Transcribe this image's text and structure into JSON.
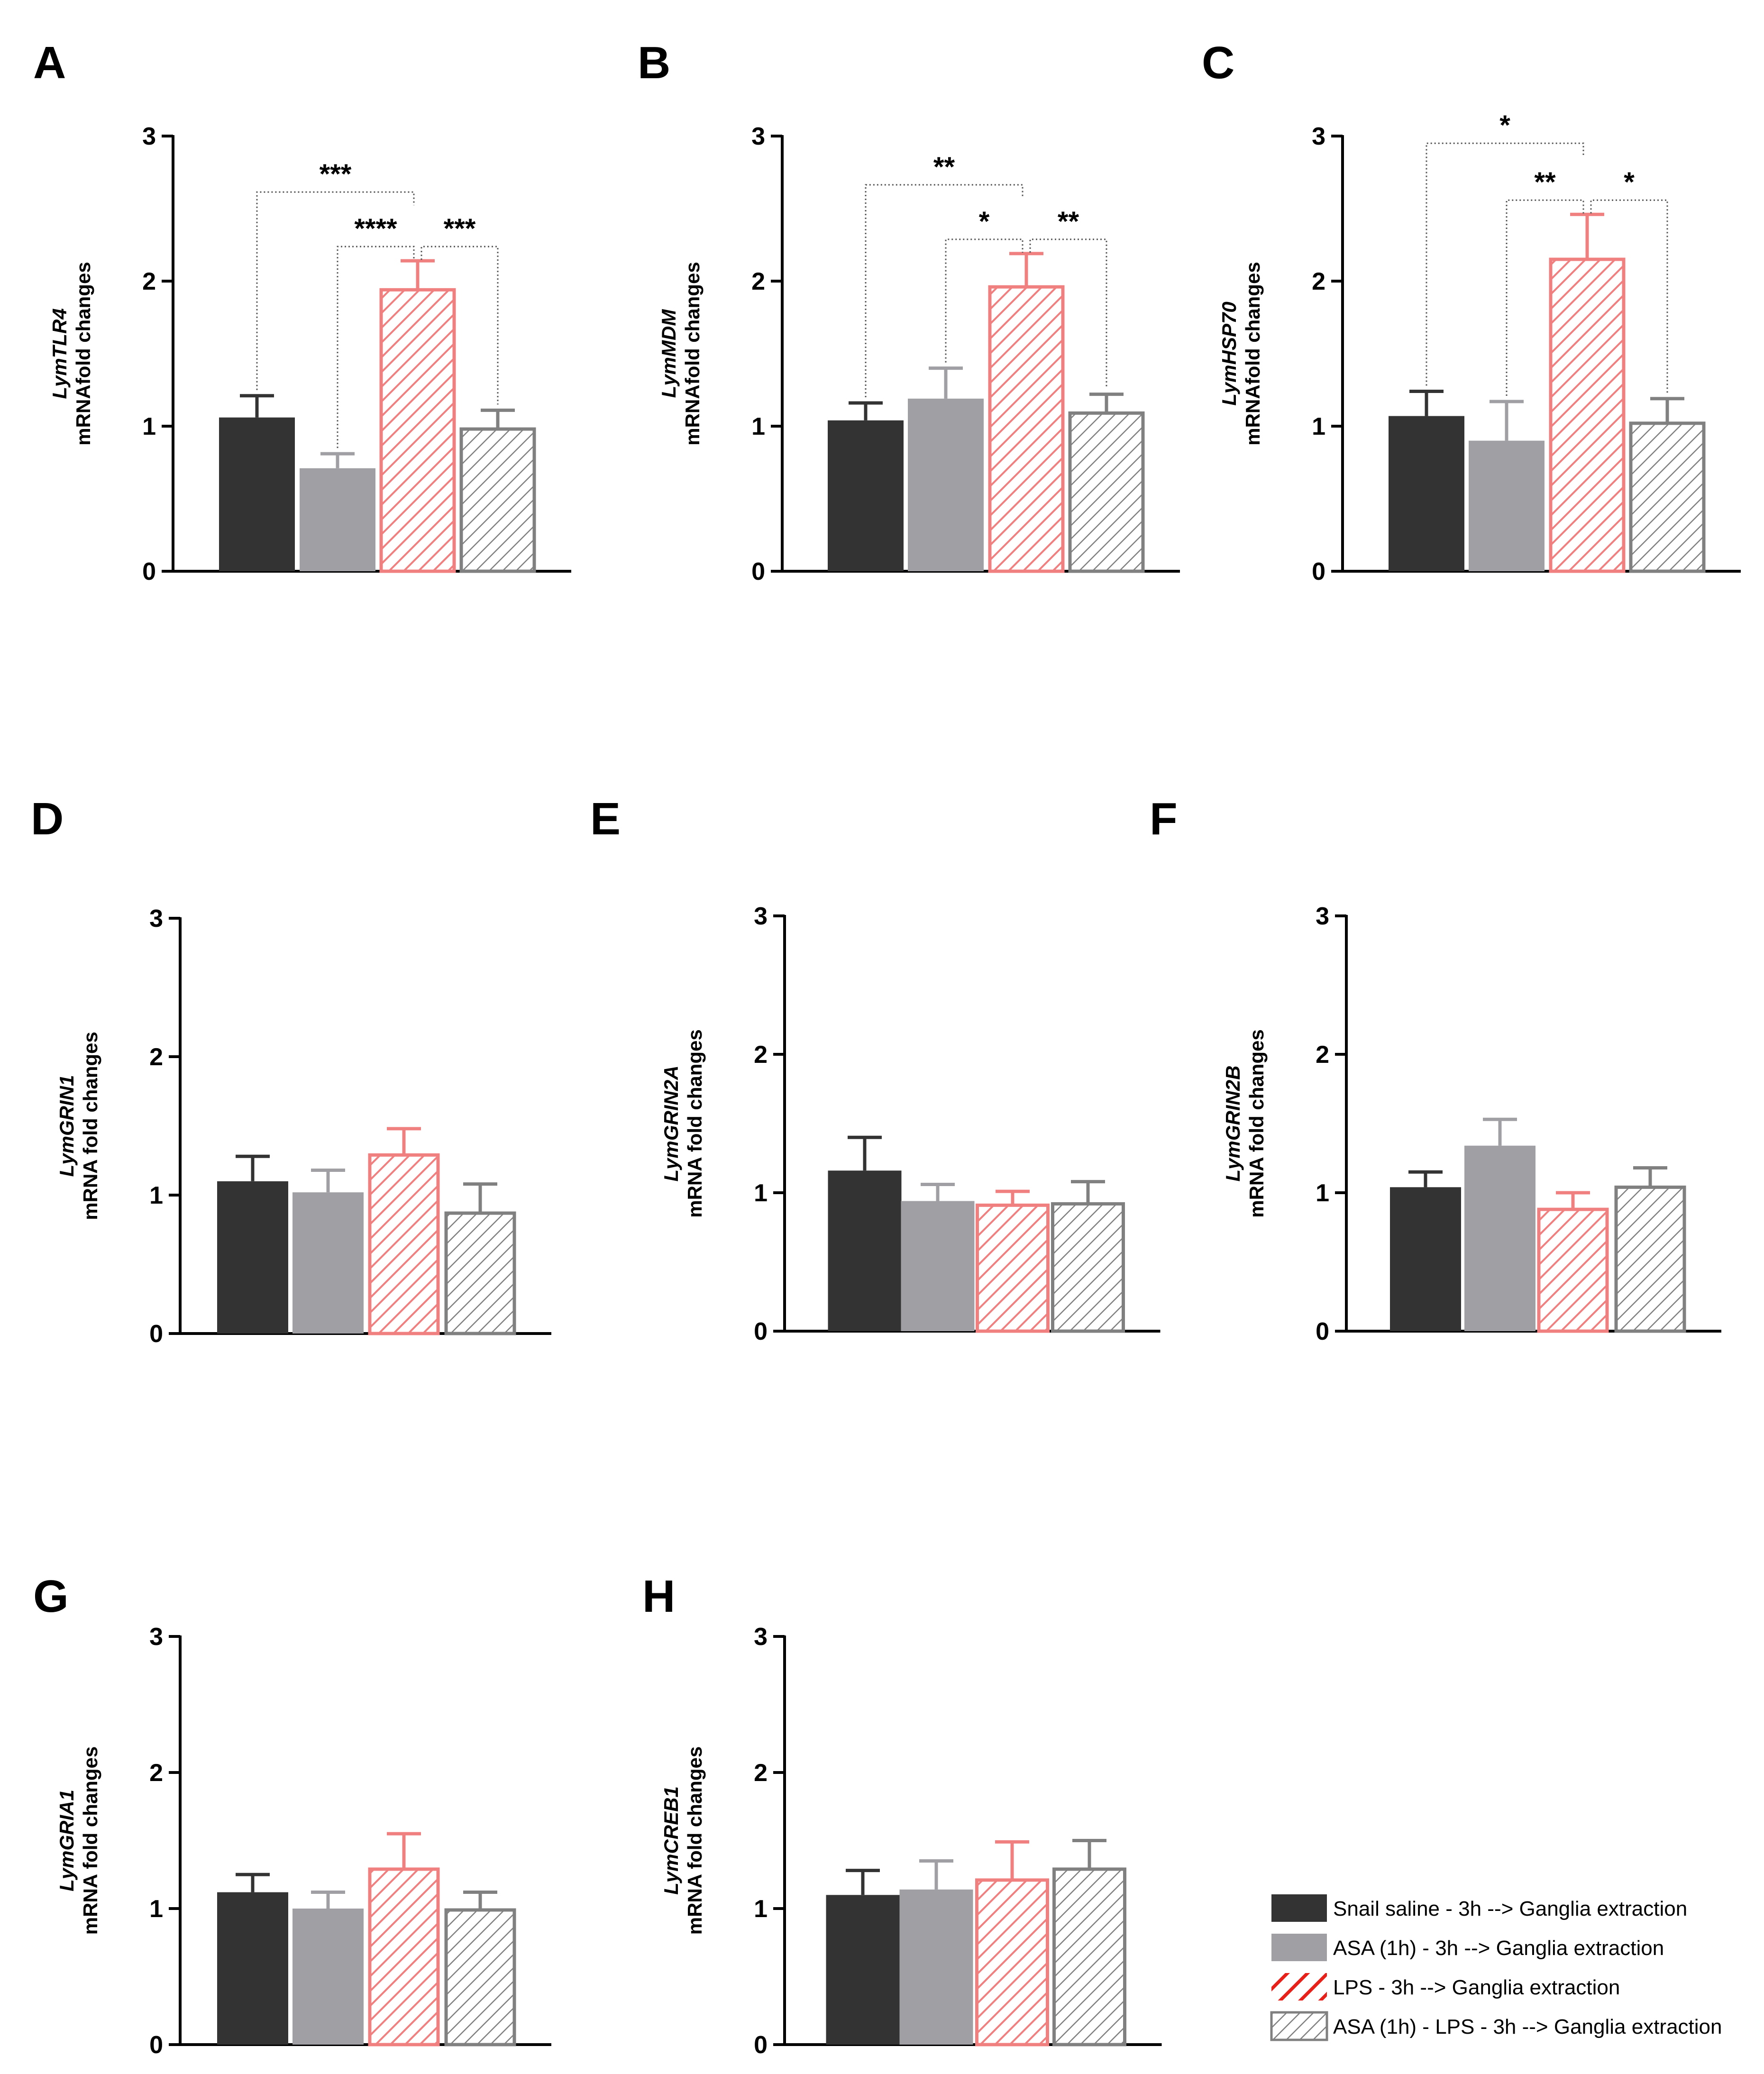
{
  "legend": {
    "items": [
      {
        "label": "Snail saline - 3h --> Ganglia extraction",
        "style": "dark"
      },
      {
        "label": "ASA (1h) - 3h --> Ganglia extraction",
        "style": "gray"
      },
      {
        "label": "LPS - 3h --> Ganglia extraction",
        "style": "redhatch"
      },
      {
        "label": "ASA (1h) - LPS - 3h --> Ganglia extraction",
        "style": "grayhatch"
      }
    ]
  },
  "styles": {
    "dark": {
      "fill": "#333333",
      "stroke": "#333333"
    },
    "gray": {
      "fill": "#a0a0a4",
      "stroke": "#a0a0a4"
    },
    "redhatch": {
      "fill": "#ffffff",
      "stroke": "#f08080",
      "hatch": "#f08080"
    },
    "grayhatch": {
      "fill": "#ffffff",
      "stroke": "#808080",
      "hatch": "#808080"
    }
  },
  "chart_data": [
    {
      "panel": "A",
      "type": "bar",
      "gene": "LymTLR4",
      "ylabel": "mRNAfold changes",
      "ylim": [
        0,
        3
      ],
      "yticks": [
        "0",
        "1",
        "2",
        "3"
      ],
      "groups": [
        "Snail saline - 3h --> Ganglia extraction",
        "ASA (1h) - 3h --> Ganglia extraction",
        "LPS - 3h --> Ganglia extraction",
        "ASA (1h) - LPS - 3h --> Ganglia extraction"
      ],
      "values": [
        1.06,
        0.71,
        1.95,
        0.99
      ],
      "errors": [
        0.15,
        0.1,
        0.19,
        0.12
      ],
      "significance": [
        {
          "from": 1,
          "to": 3,
          "label": "***"
        },
        {
          "from": 2,
          "to": 3,
          "label": "****"
        },
        {
          "from": 3,
          "to": 4,
          "label": "***"
        }
      ]
    },
    {
      "panel": "B",
      "type": "bar",
      "gene": "LymMDM",
      "ylabel": "mRNAfold changes",
      "ylim": [
        0,
        3
      ],
      "yticks": [
        "0",
        "1",
        "2",
        "3"
      ],
      "groups": [
        "Snail saline - 3h --> Ganglia extraction",
        "ASA (1h) - 3h --> Ganglia extraction",
        "LPS - 3h --> Ganglia extraction",
        "ASA (1h) - LPS - 3h --> Ganglia extraction"
      ],
      "values": [
        1.04,
        1.19,
        1.97,
        1.1
      ],
      "errors": [
        0.12,
        0.21,
        0.22,
        0.12
      ],
      "significance": [
        {
          "from": 1,
          "to": 3,
          "label": "**"
        },
        {
          "from": 2,
          "to": 3,
          "label": "*"
        },
        {
          "from": 3,
          "to": 4,
          "label": "**"
        }
      ]
    },
    {
      "panel": "C",
      "type": "bar",
      "gene": "LymHSP70",
      "ylabel": "mRNAfold changes",
      "ylim": [
        0,
        3
      ],
      "yticks": [
        "0",
        "1",
        "2",
        "3"
      ],
      "groups": [
        "Snail saline - 3h --> Ganglia extraction",
        "ASA (1h) - 3h --> Ganglia extraction",
        "LPS - 3h --> Ganglia extraction",
        "ASA (1h) - LPS - 3h --> Ganglia extraction"
      ],
      "values": [
        1.07,
        0.9,
        2.16,
        1.03
      ],
      "errors": [
        0.17,
        0.27,
        0.3,
        0.16
      ],
      "significance": [
        {
          "from": 1,
          "to": 3,
          "label": "*"
        },
        {
          "from": 2,
          "to": 3,
          "label": "**"
        },
        {
          "from": 3,
          "to": 4,
          "label": "*"
        }
      ]
    },
    {
      "panel": "D",
      "type": "bar",
      "gene": "LymGRIN1",
      "ylabel": "mRNA fold changes",
      "ylim": [
        0,
        3
      ],
      "yticks": [
        "0",
        "1",
        "2",
        "3"
      ],
      "groups": [
        "Snail saline - 3h --> Ganglia extraction",
        "ASA (1h) - 3h --> Ganglia extraction",
        "LPS - 3h --> Ganglia extraction",
        "ASA (1h) - LPS - 3h --> Ganglia extraction"
      ],
      "values": [
        1.1,
        1.02,
        1.3,
        0.88
      ],
      "errors": [
        0.18,
        0.16,
        0.18,
        0.2
      ],
      "significance": []
    },
    {
      "panel": "E",
      "type": "bar",
      "gene": "LymGRIN2A",
      "ylabel": "mRNA fold changes",
      "ylim": [
        0,
        3
      ],
      "yticks": [
        "0",
        "1",
        "2",
        "3"
      ],
      "groups": [
        "Snail saline - 3h --> Ganglia extraction",
        "ASA (1h) - 3h --> Ganglia extraction",
        "LPS - 3h --> Ganglia extraction",
        "ASA (1h) - LPS - 3h --> Ganglia extraction"
      ],
      "values": [
        1.16,
        0.94,
        0.92,
        0.93
      ],
      "errors": [
        0.24,
        0.12,
        0.09,
        0.15
      ],
      "significance": []
    },
    {
      "panel": "F",
      "type": "bar",
      "gene": "LymGRIN2B",
      "ylabel": "mRNA fold changes",
      "ylim": [
        0,
        3
      ],
      "yticks": [
        "0",
        "1",
        "2",
        "3"
      ],
      "groups": [
        "Snail saline - 3h --> Ganglia extraction",
        "ASA (1h) - 3h --> Ganglia extraction",
        "LPS - 3h --> Ganglia extraction",
        "ASA (1h) - LPS - 3h --> Ganglia extraction"
      ],
      "values": [
        1.04,
        1.34,
        0.89,
        1.05
      ],
      "errors": [
        0.11,
        0.19,
        0.11,
        0.13
      ],
      "significance": []
    },
    {
      "panel": "G",
      "type": "bar",
      "gene": "LymGRIA1",
      "ylabel": "mRNA fold changes",
      "ylim": [
        0,
        3
      ],
      "yticks": [
        "0",
        "1",
        "2",
        "3"
      ],
      "groups": [
        "Snail saline - 3h --> Ganglia extraction",
        "ASA (1h) - 3h --> Ganglia extraction",
        "LPS - 3h --> Ganglia extraction",
        "ASA (1h) - LPS - 3h --> Ganglia extraction"
      ],
      "values": [
        1.12,
        1.0,
        1.3,
        1.0
      ],
      "errors": [
        0.13,
        0.12,
        0.25,
        0.12
      ],
      "significance": []
    },
    {
      "panel": "H",
      "type": "bar",
      "gene": "LymCREB1",
      "ylabel": "mRNA fold changes",
      "ylim": [
        0,
        3
      ],
      "yticks": [
        "0",
        "1",
        "2",
        "3"
      ],
      "groups": [
        "Snail saline - 3h --> Ganglia extraction",
        "ASA (1h) - 3h --> Ganglia extraction",
        "LPS - 3h --> Ganglia extraction",
        "ASA (1h) - LPS - 3h --> Ganglia extraction"
      ],
      "values": [
        1.1,
        1.14,
        1.22,
        1.3
      ],
      "errors": [
        0.18,
        0.21,
        0.27,
        0.2
      ],
      "significance": []
    }
  ]
}
